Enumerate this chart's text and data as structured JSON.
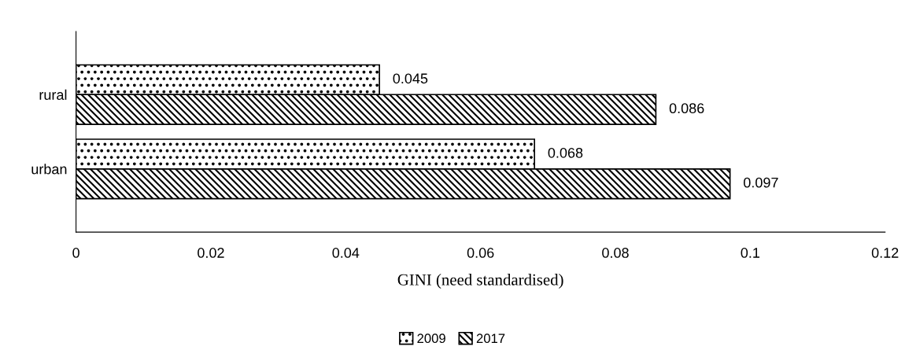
{
  "chart_data": {
    "type": "bar",
    "orientation": "horizontal",
    "xlabel": "GINI (need standardised)",
    "categories": [
      "rural",
      "urban"
    ],
    "series": [
      {
        "name": "2009",
        "color": "#000000",
        "values": [
          0.045,
          0.068
        ]
      },
      {
        "name": "2017",
        "color": "#000000",
        "values": [
          0.086,
          0.097
        ]
      }
    ],
    "xlim": [
      0,
      0.12
    ],
    "xticks": [
      0,
      0.02,
      0.04,
      0.06,
      0.08,
      0.1,
      0.12
    ],
    "data_labels": true,
    "grid": false,
    "legend": "bottom"
  }
}
